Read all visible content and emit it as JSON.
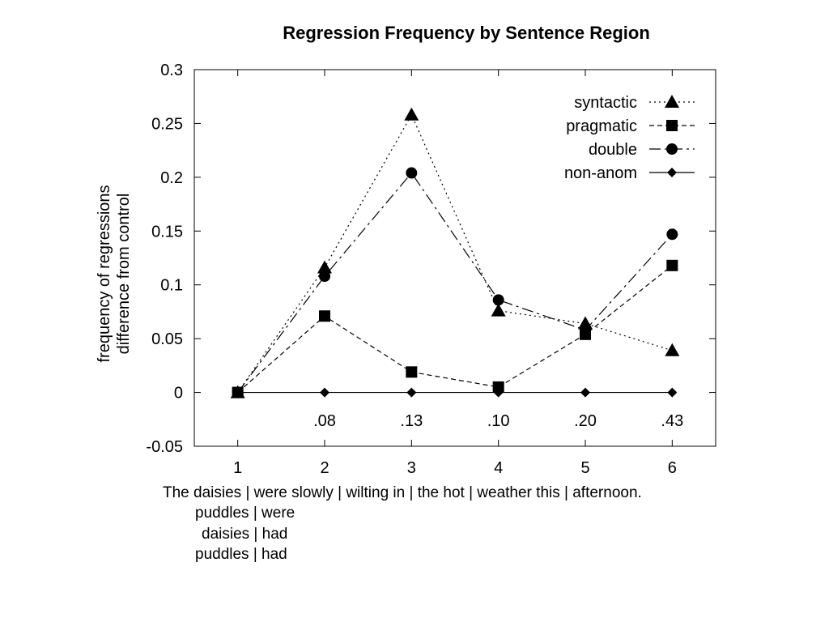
{
  "chart_data": {
    "type": "line",
    "title": "Regression Frequency by Sentence Region",
    "ylabel_lines": [
      "frequency of regressions",
      "difference from control"
    ],
    "xlabel": "",
    "x": [
      1,
      2,
      3,
      4,
      5,
      6
    ],
    "xlim": [
      0.5,
      6.5
    ],
    "ylim": [
      -0.05,
      0.3
    ],
    "yticks": [
      "-0.05",
      "0",
      "0.05",
      "0.1",
      "0.15",
      "0.2",
      "0.25",
      "0.3"
    ],
    "grid": false,
    "legend_position": "top-right",
    "series": [
      {
        "name": "syntactic",
        "marker": "triangle",
        "dash": "2,4",
        "values": [
          0.0,
          0.116,
          0.258,
          0.076,
          0.064,
          0.039
        ]
      },
      {
        "name": "pragmatic",
        "marker": "square",
        "dash": "6,4",
        "values": [
          0.0,
          0.071,
          0.019,
          0.005,
          0.054,
          0.118
        ]
      },
      {
        "name": "double",
        "marker": "circle",
        "dash": "14,5,3,5",
        "values": [
          0.0,
          0.108,
          0.204,
          0.086,
          0.058,
          0.147
        ]
      },
      {
        "name": "non-anom",
        "marker": "diamond",
        "dash": "",
        "values": [
          0.0,
          0.0,
          0.0,
          0.0,
          0.0,
          0.0
        ]
      }
    ],
    "annotations": [
      {
        "x": 2,
        "text": ".08"
      },
      {
        "x": 3,
        "text": ".13"
      },
      {
        "x": 4,
        "text": ".10"
      },
      {
        "x": 5,
        "text": ".20"
      },
      {
        "x": 6,
        "text": ".43"
      }
    ]
  },
  "sentence": {
    "line1": "The daisies | were slowly | wilting in | the hot | weather this | afternoon.",
    "line2": "puddles | were",
    "line3": "daisies | had",
    "line4": "puddles | had"
  }
}
